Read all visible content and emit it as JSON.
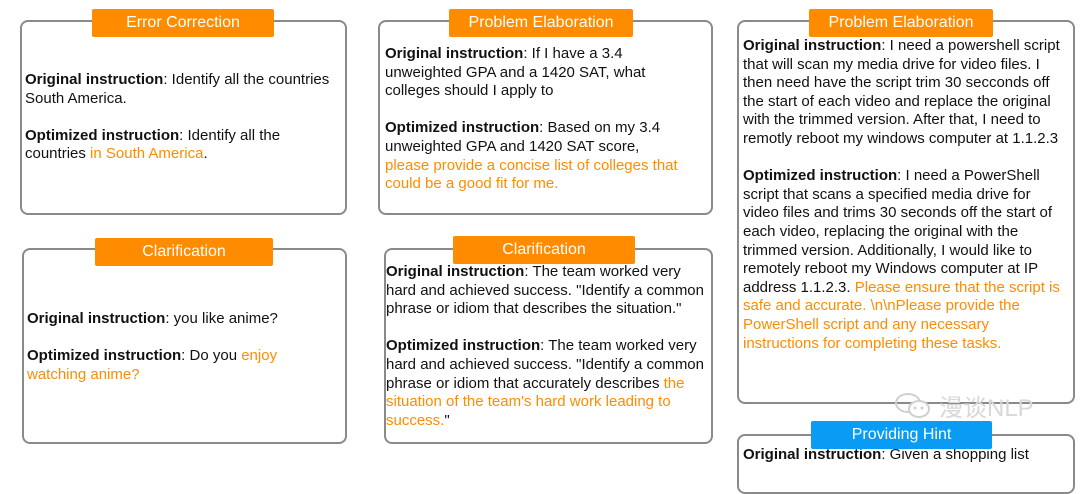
{
  "cards": [
    {
      "title": "Error Correction",
      "paragraphs": [
        [
          {
            "t": "Original instruction",
            "s": "b"
          },
          {
            "t": ": Identify all the countries South America.",
            "s": ""
          }
        ],
        [
          {
            "t": "Optimized instruction",
            "s": "b"
          },
          {
            "t": ": Identify all the countries ",
            "s": ""
          },
          {
            "t": "in South America",
            "s": "h"
          },
          {
            "t": ".",
            "s": ""
          }
        ]
      ]
    },
    {
      "title": "Clarification",
      "paragraphs": [
        [
          {
            "t": "Original instruction",
            "s": "b"
          },
          {
            "t": ": you like anime?",
            "s": ""
          }
        ],
        [
          {
            "t": "Optimized instruction",
            "s": "b"
          },
          {
            "t": ": Do you ",
            "s": ""
          },
          {
            "t": "enjoy watching anime?",
            "s": "h"
          }
        ]
      ]
    },
    {
      "title": "Problem Elaboration",
      "paragraphs": [
        [
          {
            "t": "Original instruction",
            "s": "b"
          },
          {
            "t": ": If I have a 3.4 unweighted GPA and a 1420 SAT, what colleges should I apply to",
            "s": ""
          }
        ],
        [
          {
            "t": "Optimized instruction",
            "s": "b"
          },
          {
            "t": ": Based on my 3.4 unweighted GPA and 1420 SAT score, ",
            "s": ""
          },
          {
            "t": "please provide a concise list of colleges that could be a good fit for me.",
            "s": "h"
          }
        ]
      ]
    },
    {
      "title": "Clarification",
      "paragraphs": [
        [
          {
            "t": "Original instruction",
            "s": "b"
          },
          {
            "t": ": The team worked very hard and achieved success. \"Identify a common phrase or idiom that describes the situation.\"",
            "s": ""
          }
        ],
        [
          {
            "t": "Optimized instruction",
            "s": "b"
          },
          {
            "t": ": The team worked very hard and achieved success. \"Identify a common phrase or idiom that accurately describes ",
            "s": ""
          },
          {
            "t": "the situation of the team's hard work leading to success.",
            "s": "h"
          },
          {
            "t": "\"",
            "s": ""
          }
        ]
      ]
    },
    {
      "title": "Problem Elaboration",
      "paragraphs": [
        [
          {
            "t": "Original instruction",
            "s": "b"
          },
          {
            "t": ": I need a powershell script that will scan my media drive for video files. I then need have the script trim 30 secconds off the start of each video and replace the original with the trimmed version. After that, I need to remotly reboot my windows computer at 1.1.2.3",
            "s": ""
          }
        ],
        [
          {
            "t": "Optimized instruction",
            "s": "b"
          },
          {
            "t": ": I need a PowerShell script that scans a specified media drive for video files and trims 30 seconds off the start of each video, replacing the original with the trimmed version. Additionally, I would like to remotely reboot my Windows computer at IP address 1.1.2.3. ",
            "s": ""
          },
          {
            "t": "Please ensure that the script is safe and accurate. \\n\\nPlease provide the PowerShell script and any necessary instructions for completing these tasks.",
            "s": "h"
          }
        ]
      ]
    },
    {
      "title": "Providing Hint",
      "paragraphs": [
        [
          {
            "t": "Original instruction",
            "s": "b"
          },
          {
            "t": ": Given a shopping list",
            "s": ""
          }
        ]
      ]
    }
  ],
  "watermark": {
    "text": "漫谈NLP",
    "icon": "wechat-icon"
  },
  "colors": {
    "highlight": "#ff8c00",
    "tag_orange": "#ff8c00",
    "tag_blue": "#0a9bf5",
    "border": "#8a8a8a"
  }
}
